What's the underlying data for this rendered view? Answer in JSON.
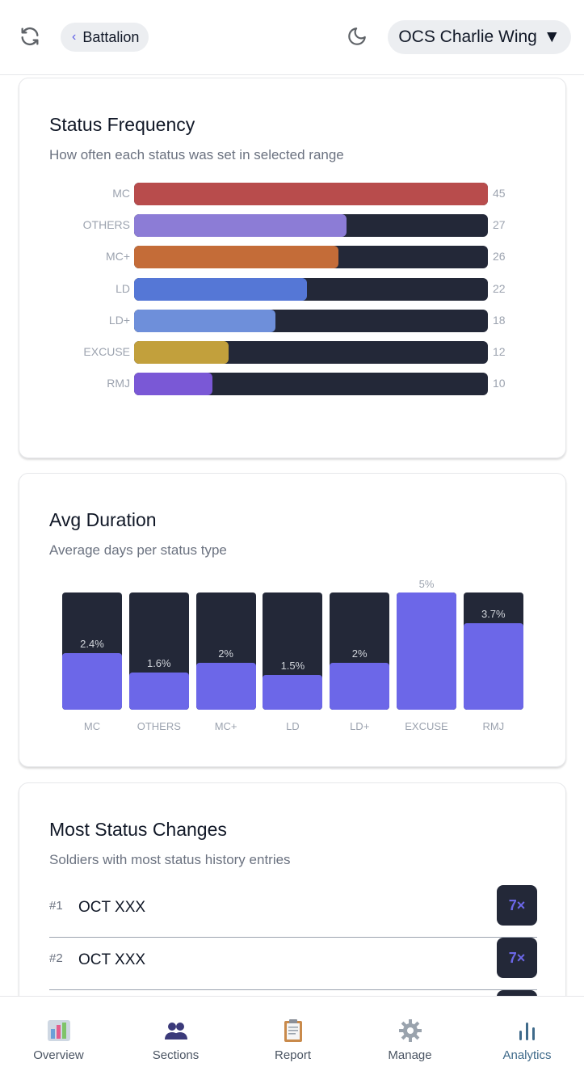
{
  "header": {
    "back_label": "Battalion",
    "unit_name": "OCS Charlie Wing",
    "dropdown_caret": "▼"
  },
  "status_frequency": {
    "title": "Status Frequency",
    "subtitle": "How often each status was set in selected range"
  },
  "avg_duration": {
    "title": "Avg Duration",
    "subtitle": "Average days per status type"
  },
  "most_changes": {
    "title": "Most Status Changes",
    "subtitle": "Soldiers with most status history entries",
    "rows": [
      {
        "rank": "#1",
        "name": "OCT XXX",
        "count": "7×"
      },
      {
        "rank": "#2",
        "name": "OCT XXX",
        "count": "7×"
      }
    ]
  },
  "nav": {
    "items": [
      {
        "label": "Overview",
        "icon": "overview-icon"
      },
      {
        "label": "Sections",
        "icon": "sections-icon"
      },
      {
        "label": "Report",
        "icon": "clipboard-icon"
      },
      {
        "label": "Manage",
        "icon": "gear-icon"
      },
      {
        "label": "Analytics",
        "icon": "bar-chart-icon",
        "active": true
      }
    ]
  },
  "colors": {
    "track": "#232838",
    "accent": "#6c67e8",
    "MC": "#b84c4c",
    "OTHERS": "#8c7cd6",
    "MC+": "#c46c38",
    "LD": "#5577d6",
    "LD+": "#6e8fda",
    "EXCUSE": "#c2a03c",
    "RMJ": "#7a58d6"
  },
  "chart_data": [
    {
      "type": "bar",
      "orientation": "horizontal",
      "categories": [
        "MC",
        "OTHERS",
        "MC+",
        "LD",
        "LD+",
        "EXCUSE",
        "RMJ"
      ],
      "values": [
        45,
        27,
        26,
        22,
        18,
        12,
        10
      ],
      "value_labels": [
        "45",
        "27",
        "26",
        "22",
        "18",
        "12",
        "10"
      ],
      "max": 45
    },
    {
      "type": "bar",
      "orientation": "vertical",
      "categories": [
        "MC",
        "OTHERS",
        "MC+",
        "LD",
        "LD+",
        "EXCUSE",
        "RMJ"
      ],
      "values": [
        2.4,
        1.6,
        2,
        1.5,
        2,
        5,
        3.7
      ],
      "value_labels": [
        "2.4%",
        "1.6%",
        "2%",
        "1.5%",
        "2%",
        "5%",
        "3.7%"
      ],
      "max": 5
    }
  ]
}
